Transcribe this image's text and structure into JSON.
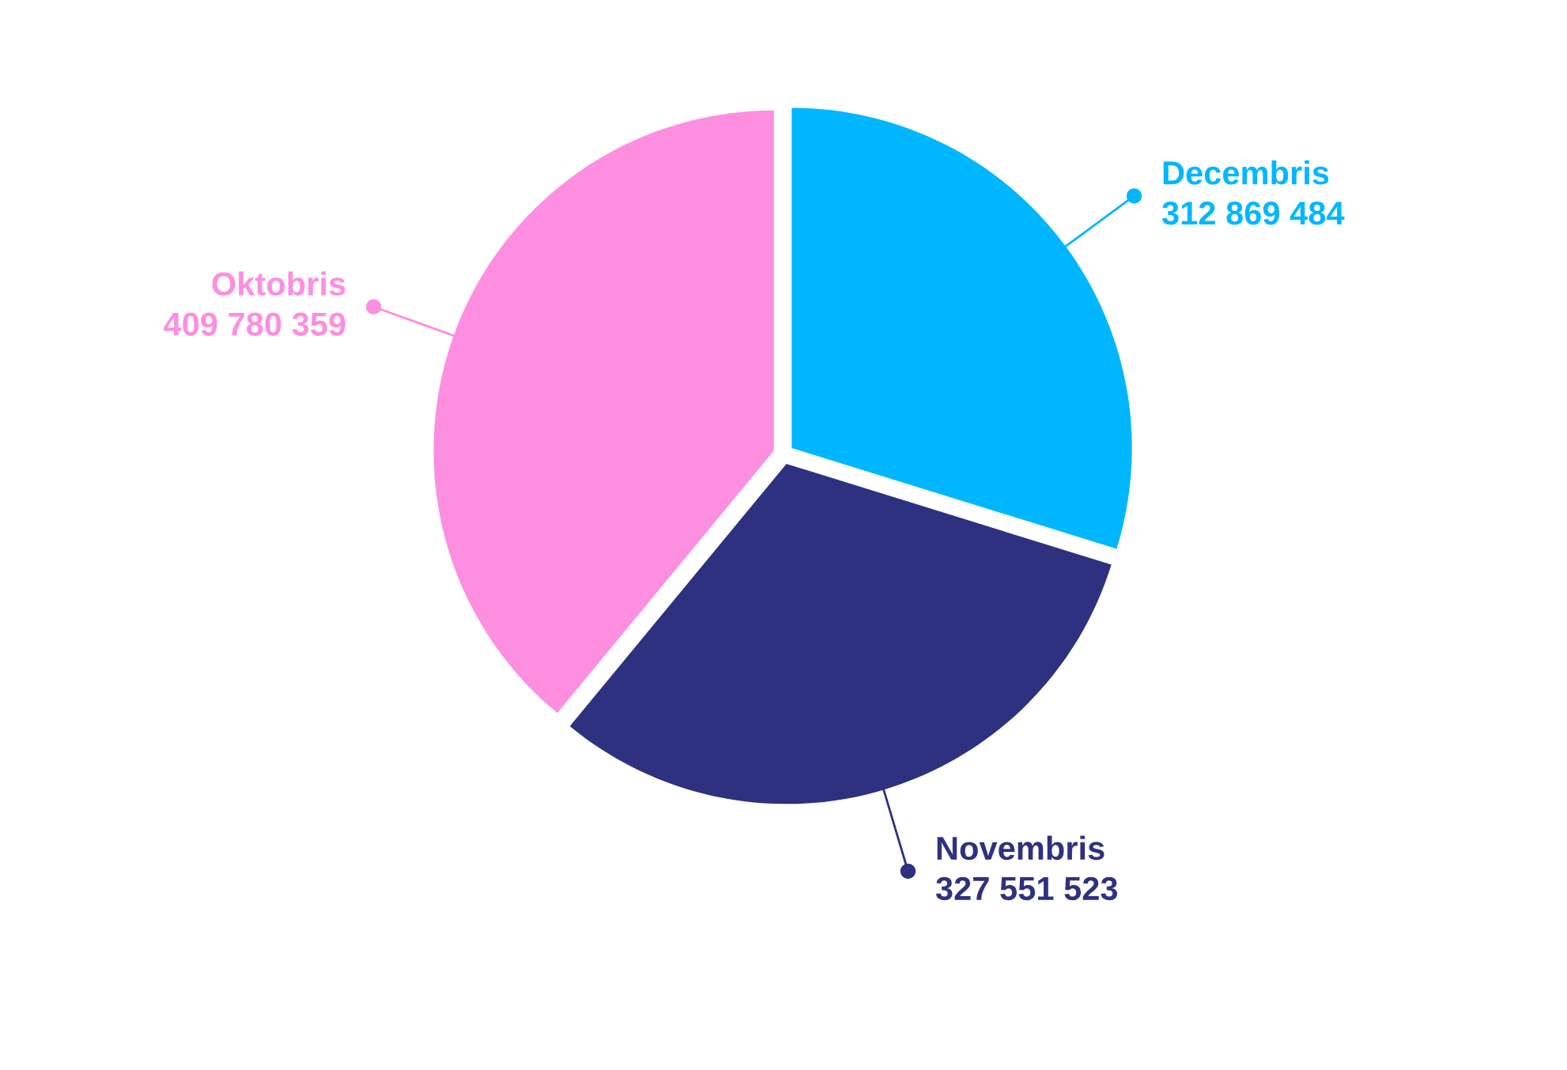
{
  "chart_data": {
    "type": "pie",
    "categories": [
      "Decembris",
      "Novembris",
      "Oktobris"
    ],
    "values": [
      312869484,
      327551523,
      409780359
    ],
    "value_labels": [
      "312 869 484",
      "327 551 523",
      "409 780 359"
    ],
    "colors": [
      "#00b7ff",
      "#2e3180",
      "#fd8ee0"
    ]
  }
}
